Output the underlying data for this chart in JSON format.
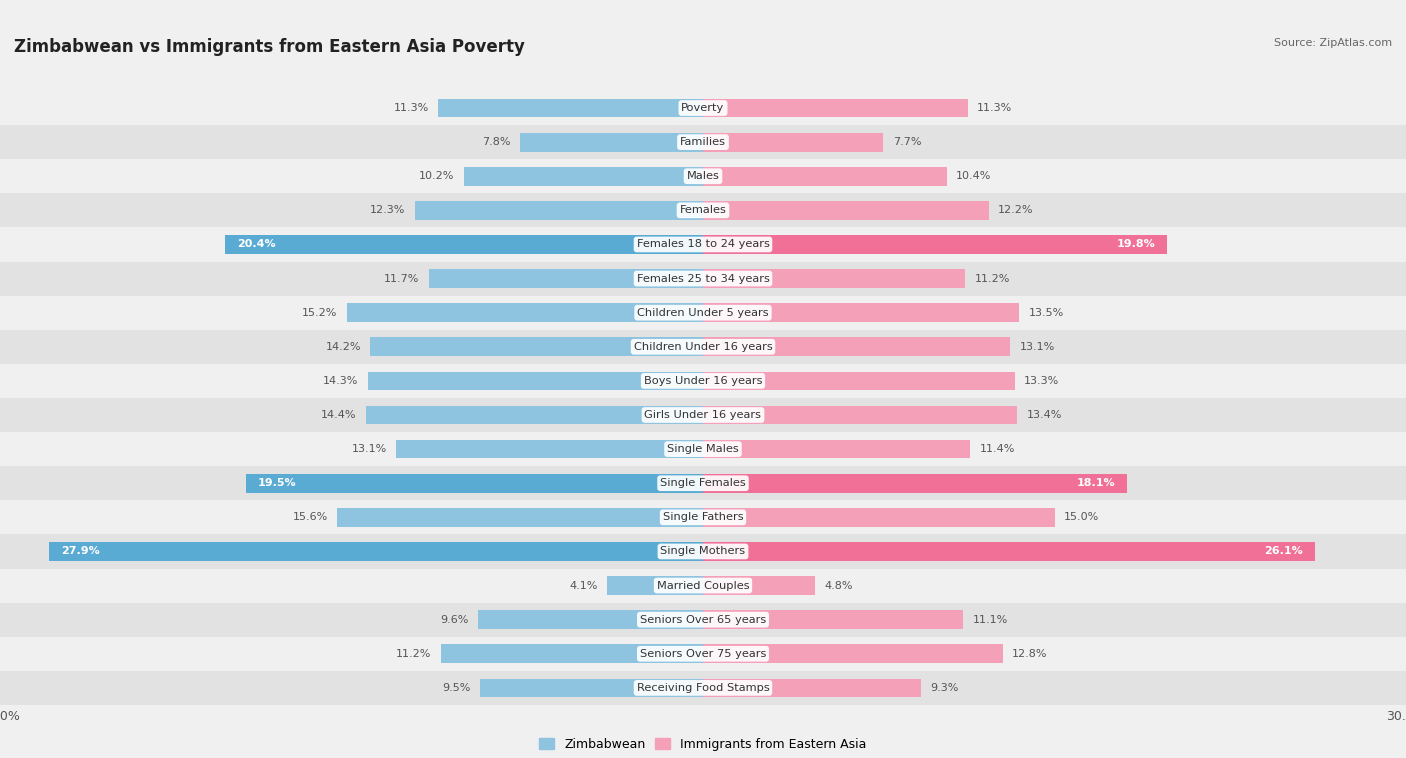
{
  "title": "Zimbabwean vs Immigrants from Eastern Asia Poverty",
  "source": "Source: ZipAtlas.com",
  "categories": [
    "Poverty",
    "Families",
    "Males",
    "Females",
    "Females 18 to 24 years",
    "Females 25 to 34 years",
    "Children Under 5 years",
    "Children Under 16 years",
    "Boys Under 16 years",
    "Girls Under 16 years",
    "Single Males",
    "Single Females",
    "Single Fathers",
    "Single Mothers",
    "Married Couples",
    "Seniors Over 65 years",
    "Seniors Over 75 years",
    "Receiving Food Stamps"
  ],
  "zimbabwean": [
    11.3,
    7.8,
    10.2,
    12.3,
    20.4,
    11.7,
    15.2,
    14.2,
    14.3,
    14.4,
    13.1,
    19.5,
    15.6,
    27.9,
    4.1,
    9.6,
    11.2,
    9.5
  ],
  "eastern_asia": [
    11.3,
    7.7,
    10.4,
    12.2,
    19.8,
    11.2,
    13.5,
    13.1,
    13.3,
    13.4,
    11.4,
    18.1,
    15.0,
    26.1,
    4.8,
    11.1,
    12.8,
    9.3
  ],
  "zimbabwean_color": "#8FC4E0",
  "eastern_asia_color": "#F4A0B8",
  "zimbabwean_highlight_color": "#5AABD4",
  "eastern_asia_highlight_color": "#F07098",
  "highlight_threshold": 18.0,
  "xlim": 30.0,
  "background_color": "#f0f0f0",
  "row_bg_light": "#f0f0f0",
  "row_bg_dark": "#e2e2e2",
  "title_fontsize": 12,
  "legend_label_zim": "Zimbabwean",
  "legend_label_ea": "Immigrants from Eastern Asia"
}
